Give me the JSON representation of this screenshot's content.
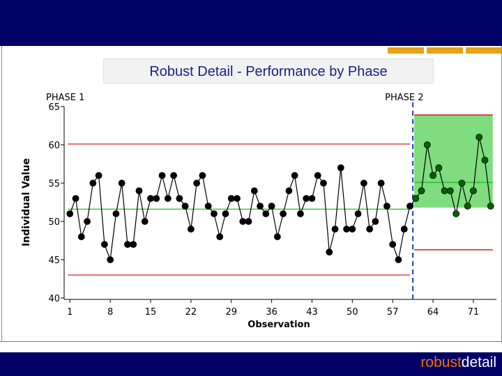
{
  "slide": {
    "title": "Robust Detail - Performance by Phase",
    "logo_part1": "robust",
    "logo_part2": "detail",
    "colors": {
      "header": "#000066",
      "accent": "#e8a21a",
      "title_text": "#1a237e",
      "logo_orange": "#f07000"
    }
  },
  "chart_data": {
    "type": "line",
    "ylabel": "Individual Value",
    "xlabel": "Observation",
    "ylim": [
      40,
      65
    ],
    "xlim": [
      0,
      75
    ],
    "yticks": [
      40,
      45,
      50,
      55,
      60,
      65
    ],
    "xticks": [
      1,
      8,
      15,
      22,
      29,
      36,
      43,
      50,
      57,
      64,
      71
    ],
    "phase_labels": [
      "PHASE 1",
      "PHASE 2"
    ],
    "phase_boundary": 60.5,
    "phases": [
      {
        "name": "PHASE 1",
        "center": 51.6,
        "ucl": 60.1,
        "lcl": 43.0,
        "line_color": "#000000"
      },
      {
        "name": "PHASE 2",
        "center": 55.1,
        "ucl": 63.9,
        "lcl": 46.3,
        "band": [
          51.8,
          63.9
        ],
        "line_color": "#006400"
      }
    ],
    "colors": {
      "center": "#22c422",
      "limits": "#d42020",
      "band": "#7fdc7f",
      "boundary": "#1a3fc8"
    },
    "x": [
      1,
      2,
      3,
      4,
      5,
      6,
      7,
      8,
      9,
      10,
      11,
      12,
      13,
      14,
      15,
      16,
      17,
      18,
      19,
      20,
      21,
      22,
      23,
      24,
      25,
      26,
      27,
      28,
      29,
      30,
      31,
      32,
      33,
      34,
      35,
      36,
      37,
      38,
      39,
      40,
      41,
      42,
      43,
      44,
      45,
      46,
      47,
      48,
      49,
      50,
      51,
      52,
      53,
      54,
      55,
      56,
      57,
      58,
      59,
      60,
      61,
      62,
      63,
      64,
      65,
      66,
      67,
      68,
      69,
      70,
      71,
      72,
      73,
      74
    ],
    "values": [
      51,
      53,
      48,
      50,
      55,
      56,
      47,
      45,
      51,
      55,
      47,
      47,
      54,
      50,
      53,
      53,
      56,
      53,
      56,
      53,
      52,
      49,
      55,
      56,
      52,
      51,
      48,
      51,
      53,
      53,
      50,
      50,
      54,
      52,
      51,
      52,
      48,
      51,
      54,
      56,
      51,
      53,
      53,
      56,
      55,
      46,
      49,
      57,
      49,
      49,
      51,
      55,
      49,
      50,
      55,
      52,
      47,
      45,
      49,
      52,
      53,
      54,
      60,
      56,
      57,
      54,
      54,
      51,
      55,
      52,
      54,
      61,
      58,
      52
    ]
  }
}
